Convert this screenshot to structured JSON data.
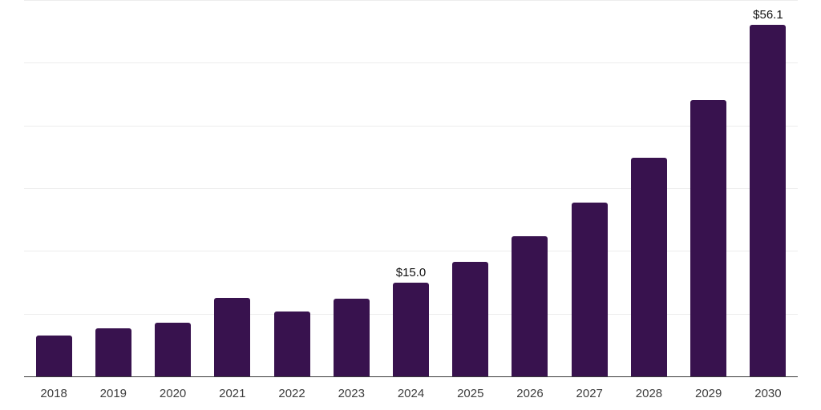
{
  "chart_data": {
    "type": "bar",
    "title": "",
    "xlabel": "",
    "ylabel": "",
    "categories": [
      "2018",
      "2019",
      "2020",
      "2021",
      "2022",
      "2023",
      "2024",
      "2025",
      "2026",
      "2027",
      "2028",
      "2029",
      "2030"
    ],
    "values": [
      6.5,
      7.7,
      8.6,
      12.5,
      10.3,
      12.4,
      15.0,
      18.2,
      22.3,
      27.7,
      34.9,
      44.0,
      56.1
    ],
    "data_labels": {
      "2024": "$15.0",
      "2030": "$56.1"
    },
    "ylim": [
      0,
      60
    ],
    "gridline_values": [
      10,
      20,
      30,
      40,
      50,
      60
    ],
    "grid": "horizontal",
    "legend_position": "none",
    "y_axis_labels_visible": false
  },
  "colors": {
    "bar": "#38124e",
    "gridline": "#ededed",
    "axis": "#3a3a3a",
    "tick_label": "#3d3d3d",
    "data_label": "#111111",
    "background": "#ffffff"
  }
}
